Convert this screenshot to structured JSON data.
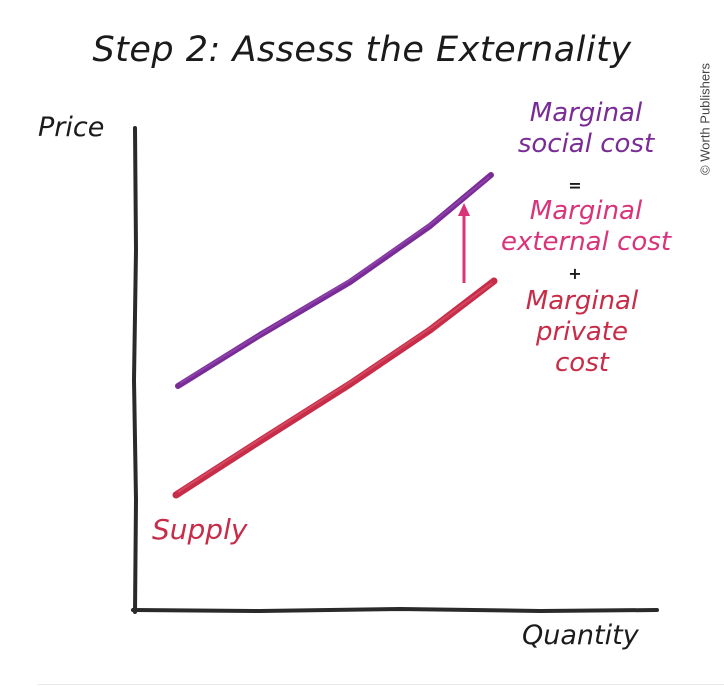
{
  "title": "Step 2: Assess the Externality",
  "credit": "© Worth Publishers",
  "axes": {
    "y_label": "Price",
    "x_label": "Quantity"
  },
  "labels": {
    "msc": [
      "Marginal",
      "social cost"
    ],
    "equals": "=",
    "mec": [
      "Marginal",
      "external cost"
    ],
    "plus": "+",
    "mpc": [
      "Marginal",
      "private",
      "cost"
    ],
    "supply": "Supply"
  },
  "colors": {
    "msc": "#7a2c96",
    "mec": "#d9337a",
    "supply": "#c72c48",
    "axis": "#2a2a2a",
    "text": "#1b1b1b"
  }
}
